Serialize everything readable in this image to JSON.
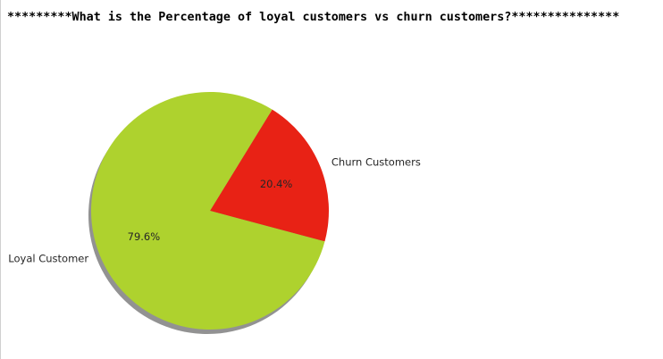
{
  "output": {
    "heading": "*********What is the Percentage of loyal customers vs churn customers?***************"
  },
  "chart_data": {
    "type": "pie",
    "categories": [
      "Churn Customers",
      "Loyal Customer"
    ],
    "values": [
      20.4,
      79.6
    ],
    "percent_labels": [
      "20.4%",
      "79.6%"
    ],
    "colors": [
      "#e82215",
      "#aed22e"
    ],
    "shadow": true,
    "start_angle_deg": -15,
    "legend": "none"
  }
}
